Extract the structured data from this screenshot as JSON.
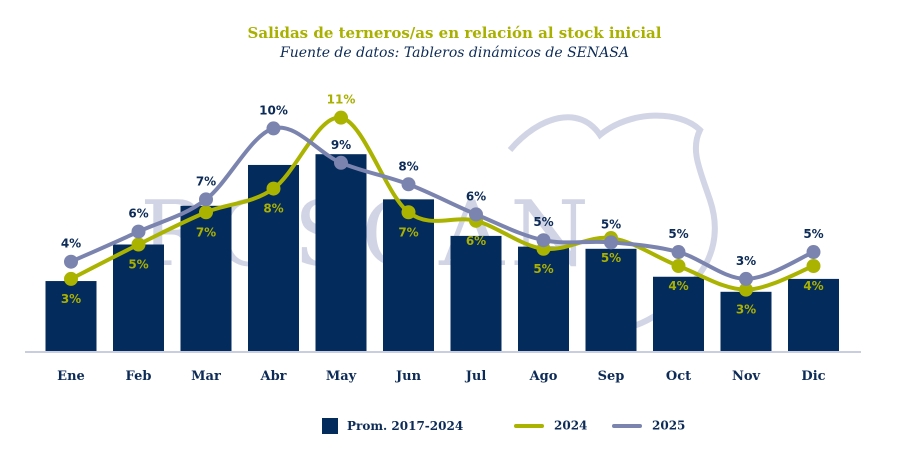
{
  "title": "Salidas de terneros/as en relación al stock inicial",
  "subtitle": "Fuente de datos: Tableros dinámicos de SENASA",
  "watermark": "ROSGAN",
  "colors": {
    "bars": "#032b5c",
    "line_2024": "#aab300",
    "line_2025": "#7b84ae",
    "axis": "#c9cde0"
  },
  "chart_data": {
    "type": "bar+line",
    "categories": [
      "Ene",
      "Feb",
      "Mar",
      "Abr",
      "May",
      "Jun",
      "Jul",
      "Ago",
      "Sep",
      "Oct",
      "Nov",
      "Dic"
    ],
    "ylim": [
      0,
      12
    ],
    "grid": false,
    "legend_placement": "bottom",
    "series": [
      {
        "name": "Prom. 2017-2024",
        "kind": "bar",
        "values": [
          3.3,
          5.0,
          6.8,
          8.7,
          9.2,
          7.1,
          5.4,
          4.9,
          4.8,
          3.5,
          2.8,
          3.4
        ]
      },
      {
        "name": "2024",
        "kind": "line",
        "values": [
          3.4,
          5.0,
          6.5,
          7.6,
          10.9,
          6.5,
          6.1,
          4.8,
          5.3,
          4.0,
          2.9,
          4.0
        ],
        "labels": [
          "3%",
          "5%",
          "7%",
          "8%",
          "11%",
          "7%",
          "6%",
          "5%",
          "5%",
          "4%",
          "3%",
          "4%"
        ]
      },
      {
        "name": "2025",
        "kind": "line",
        "values": [
          4.2,
          5.6,
          7.1,
          10.4,
          8.8,
          7.8,
          6.4,
          5.2,
          5.1,
          4.65,
          3.4,
          4.65
        ],
        "labels": [
          "4%",
          "6%",
          "7%",
          "10%",
          "9%",
          "8%",
          "6%",
          "5%",
          "5%",
          "5%",
          "3%",
          "5%"
        ]
      }
    ]
  }
}
